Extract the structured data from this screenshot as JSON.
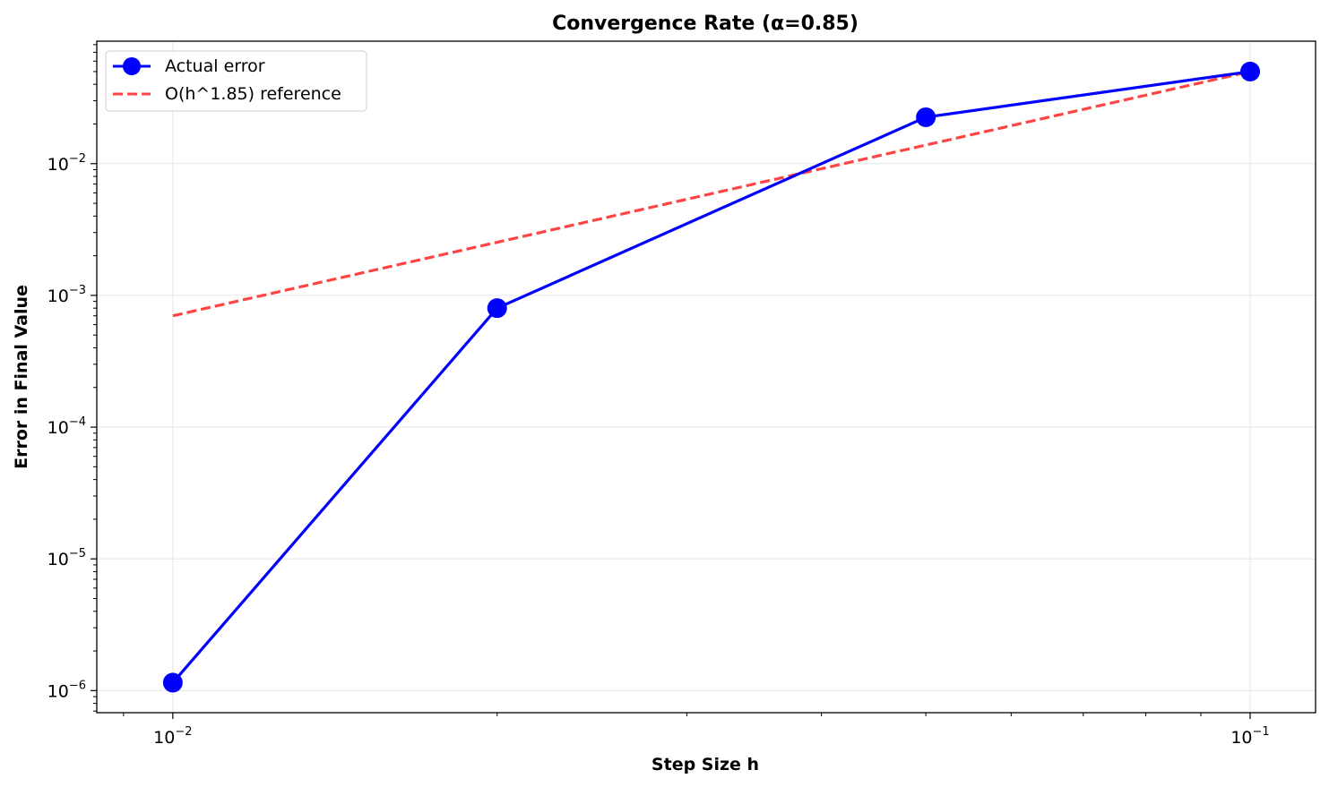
{
  "chart_data": {
    "type": "line",
    "title": "Convergence Rate (α=0.85)",
    "xlabel": "Step Size h",
    "ylabel": "Error in Final Value",
    "xscale": "log",
    "yscale": "log",
    "xlim": [
      0.0085,
      0.115
    ],
    "ylim": [
      6.8e-07,
      0.085
    ],
    "grid": true,
    "legend_position": "top-left",
    "x_ticks": [
      {
        "value": 0.01,
        "base": "10",
        "exp": "−2"
      },
      {
        "value": 0.1,
        "base": "10",
        "exp": "−1"
      }
    ],
    "y_ticks": [
      {
        "value": 1e-06,
        "base": "10",
        "exp": "−6"
      },
      {
        "value": 1e-05,
        "base": "10",
        "exp": "−5"
      },
      {
        "value": 0.0001,
        "base": "10",
        "exp": "−4"
      },
      {
        "value": 0.001,
        "base": "10",
        "exp": "−3"
      },
      {
        "value": 0.01,
        "base": "10",
        "exp": "−2"
      }
    ],
    "series": [
      {
        "name": "Actual error",
        "color": "#0000ff",
        "style": "solid",
        "marker": "circle",
        "x": [
          0.01,
          0.02,
          0.05,
          0.1
        ],
        "y": [
          1.15e-06,
          0.0008,
          0.0225,
          0.05
        ]
      },
      {
        "name": "O(h^1.85) reference",
        "color": "#ff4444",
        "style": "dashed",
        "marker": "none",
        "x": [
          0.01,
          0.1
        ],
        "y": [
          0.0007,
          0.05
        ]
      }
    ]
  }
}
